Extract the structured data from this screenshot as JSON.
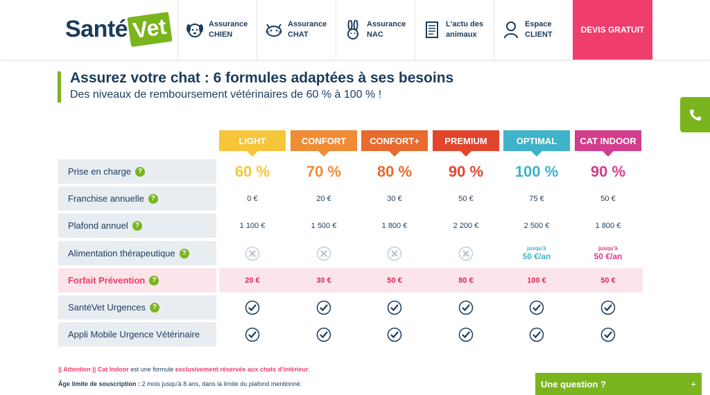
{
  "logo": {
    "part1": "Santé",
    "part2": "Vet"
  },
  "nav": [
    {
      "line1": "Assurance",
      "line2": "CHIEN",
      "icon": "dog-icon"
    },
    {
      "line1": "Assurance",
      "line2": "CHAT",
      "icon": "cat-icon"
    },
    {
      "line1": "Assurance",
      "line2": "NAC",
      "icon": "rabbit-icon"
    },
    {
      "line1": "L'actu des",
      "line2": "animaux",
      "icon": "newspaper-icon"
    },
    {
      "line1": "Espace",
      "line2": "CLIENT",
      "icon": "user-icon"
    }
  ],
  "devis": "DEVIS GRATUIT",
  "page": {
    "title": "Assurez votre chat : 6 formules adaptées à ses besoins",
    "subtitle": "Des niveaux de remboursement vétérinaires de 60 % à 100 % !"
  },
  "plans": [
    {
      "name": "LIGHT",
      "color": "#f5c53a",
      "pct": "60 %",
      "franchise": "0 €",
      "plafond": "1 100 €",
      "alim": null,
      "prevention": "20 €"
    },
    {
      "name": "CONFORT",
      "color": "#f08c34",
      "pct": "70 %",
      "franchise": "20 €",
      "plafond": "1 500 €",
      "alim": null,
      "prevention": "30 €"
    },
    {
      "name": "CONFORT+",
      "color": "#e96a2d",
      "pct": "80 %",
      "franchise": "30 €",
      "plafond": "1 800 €",
      "alim": null,
      "prevention": "50 €"
    },
    {
      "name": "PREMIUM",
      "color": "#e2442c",
      "pct": "90 %",
      "franchise": "50 €",
      "plafond": "2 200 €",
      "alim": null,
      "prevention": "80 €"
    },
    {
      "name": "OPTIMAL",
      "color": "#3eb3c9",
      "pct": "100 %",
      "franchise": "75 €",
      "plafond": "2 500 €",
      "alim": {
        "pre": "jusqu'à",
        "val": "50 €/an"
      },
      "prevention": "100 €"
    },
    {
      "name": "CAT INDOOR",
      "color": "#d23d8c",
      "pct": "90 %",
      "franchise": "50 €",
      "plafond": "1 800 €",
      "alim": {
        "pre": "jusqu'à",
        "val": "50 €/an"
      },
      "prevention": "50 €"
    }
  ],
  "rows": {
    "prise": "Prise en charge",
    "franchise": "Franchise annuelle",
    "plafond": "Plafond annuel",
    "alim": "Alimentation thérapeutique",
    "prevention": "Forfait Prévention",
    "urgences": "SantéVet Urgences",
    "appli": "Appli Mobile Urgence Vétérinaire"
  },
  "help_glyph": "?",
  "notes": {
    "n1_a": "|| Attention || Cat Indoor",
    "n1_b": " est une formule ",
    "n1_c": "exclusivement réservée aux chats d'intérieur",
    "n1_d": ".",
    "n2_a": "Âge limite de souscription :",
    "n2_b": " 2 mois jusqu'à 8 ans, dans la limite du plafond mentionné."
  },
  "chat": {
    "label": "Une question ?",
    "plus": "+"
  }
}
